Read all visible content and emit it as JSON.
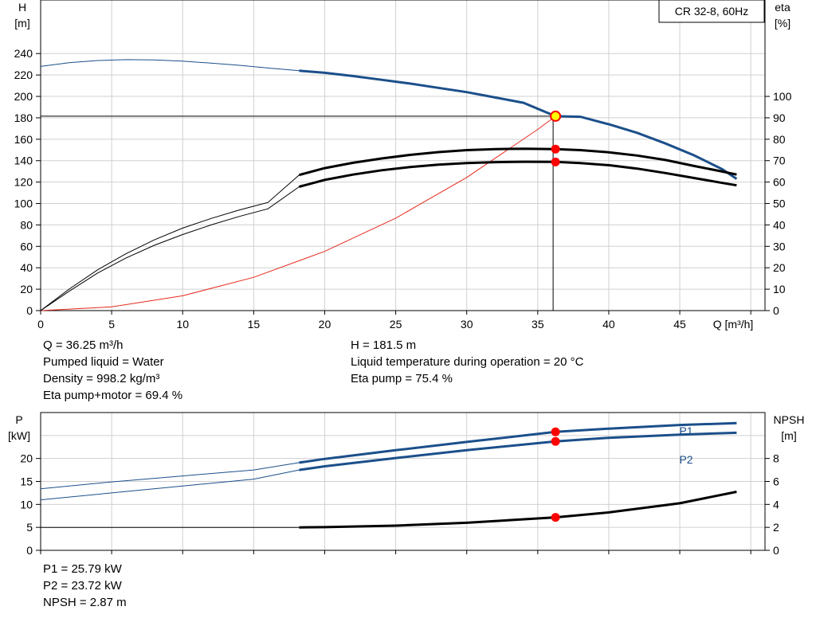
{
  "chart_data": [
    {
      "type": "line",
      "title": "CR 32-8, 60Hz",
      "xlabel": "Q [m³/h]",
      "ylabel_left": "H\n[m]",
      "ylabel_right": "eta\n[%]",
      "xlim": [
        0,
        51
      ],
      "ylim_left": [
        0,
        290
      ],
      "ylim_right": [
        0,
        145
      ],
      "xticks": [
        0,
        5,
        10,
        15,
        20,
        25,
        30,
        35,
        40,
        45
      ],
      "yticks_left": [
        0,
        20,
        40,
        60,
        80,
        100,
        120,
        140,
        160,
        180,
        200,
        220,
        240
      ],
      "yticks_right": [
        0,
        10,
        20,
        30,
        40,
        50,
        60,
        70,
        80,
        90,
        100
      ],
      "grid": true,
      "operating_range_x": [
        18.2,
        49
      ],
      "series": [
        {
          "key": "H",
          "axis": "left",
          "color": "#1b4f8a",
          "x": [
            0,
            2,
            4,
            6,
            8,
            10,
            12,
            14,
            16,
            18.2,
            20,
            22,
            24,
            26,
            28,
            30,
            32,
            34,
            36.25,
            38,
            40,
            42,
            44,
            46,
            48,
            49
          ],
          "y": [
            228,
            231.5,
            233.5,
            234.3,
            234,
            233,
            231,
            229,
            226.5,
            224,
            222,
            219,
            215.5,
            212,
            208,
            204,
            199,
            194,
            181.5,
            181,
            174,
            166,
            156,
            145,
            132,
            123
          ]
        },
        {
          "key": "eta_pump",
          "axis": "right",
          "color": "#000000",
          "x": [
            0,
            2,
            4,
            6,
            8,
            10,
            12,
            14,
            16,
            18.2,
            20,
            22,
            24,
            26,
            28,
            30,
            32,
            34,
            36.25,
            38,
            40,
            42,
            44,
            46,
            48,
            49
          ],
          "y": [
            0,
            10,
            19,
            26.5,
            33,
            38.5,
            43,
            47,
            50.5,
            63.3,
            66.5,
            69,
            71,
            72.7,
            74,
            74.9,
            75.4,
            75.6,
            75.4,
            74.9,
            73.9,
            72.4,
            70.3,
            67.5,
            64.9,
            63.5
          ]
        },
        {
          "key": "eta_pump_motor",
          "axis": "right",
          "color": "#000000",
          "x": [
            0,
            2,
            4,
            6,
            8,
            10,
            12,
            14,
            16,
            18.2,
            20,
            22,
            24,
            26,
            28,
            30,
            32,
            34,
            36.25,
            38,
            40,
            42,
            44,
            46,
            48,
            49
          ],
          "y": [
            0,
            9,
            17.5,
            24.5,
            30.5,
            35.5,
            40,
            44,
            47.5,
            57.8,
            61,
            63.5,
            65.5,
            67,
            68.1,
            68.9,
            69.3,
            69.5,
            69.4,
            68.9,
            67.9,
            66.3,
            64.2,
            61.9,
            59.6,
            58.5
          ]
        },
        {
          "key": "system_curve",
          "axis": "left",
          "color": "#e8291c",
          "x": [
            0,
            5,
            10,
            15,
            20,
            25,
            30,
            35,
            36.25
          ],
          "y": [
            0,
            3.5,
            13.8,
            31.1,
            55.3,
            86.3,
            124.3,
            169.2,
            181.5
          ]
        }
      ],
      "operating_point": {
        "x": 36.25,
        "H": 181.5,
        "eta_pump": 75.4,
        "eta_pump_motor": 69.4
      }
    },
    {
      "type": "line",
      "xlabel": "",
      "ylabel_left": "P\n[kW]",
      "ylabel_right": "NPSH\n[m]",
      "xlim": [
        0,
        51
      ],
      "ylim_left": [
        0,
        30
      ],
      "ylim_right": [
        0,
        12
      ],
      "yticks_left": [
        0,
        5,
        10,
        15,
        20
      ],
      "yticks_right": [
        0,
        2,
        4,
        6,
        8
      ],
      "grid": true,
      "operating_range_x": [
        18.2,
        49
      ],
      "series": [
        {
          "key": "P1",
          "name": "P1",
          "axis": "left",
          "color": "#1b4f8a",
          "x": [
            0,
            5,
            10,
            15,
            18.2,
            20,
            25,
            30,
            36.25,
            40,
            45,
            49
          ],
          "y": [
            13.4,
            14.9,
            16.2,
            17.5,
            19.1,
            19.9,
            21.8,
            23.6,
            25.79,
            26.5,
            27.3,
            27.7
          ]
        },
        {
          "key": "P2",
          "name": "P2",
          "axis": "left",
          "color": "#1b4f8a",
          "x": [
            0,
            5,
            10,
            15,
            18.2,
            20,
            25,
            30,
            36.25,
            40,
            45,
            49
          ],
          "y": [
            11.0,
            12.5,
            14.0,
            15.5,
            17.5,
            18.3,
            20.1,
            21.8,
            23.72,
            24.5,
            25.2,
            25.6
          ]
        },
        {
          "key": "NPSH",
          "axis": "right",
          "color": "#000000",
          "x": [
            0,
            5,
            10,
            15,
            18.2,
            20,
            25,
            30,
            36.25,
            40,
            45,
            49
          ],
          "y": [
            2.0,
            2.0,
            2.0,
            2.0,
            2.0,
            2.02,
            2.15,
            2.4,
            2.87,
            3.3,
            4.1,
            5.1
          ]
        }
      ],
      "operating_point": {
        "x": 36.25,
        "P1": 25.79,
        "P2": 23.72,
        "NPSH": 2.87
      }
    }
  ],
  "info_top": {
    "col1": [
      "Q = 36.25 m³/h",
      "Pumped liquid = Water",
      "Density = 998.2 kg/m³",
      "Eta pump+motor = 69.4 %"
    ],
    "col2": [
      "H = 181.5 m",
      "Liquid temperature during operation = 20 °C",
      "Eta pump = 75.4 %"
    ]
  },
  "info_bottom": [
    "P1 = 25.79 kW",
    "P2 = 23.72 kW",
    "NPSH = 2.87 m"
  ],
  "colors": {
    "curve_blue": "#1b4f8a",
    "curve_black": "#000000",
    "system_red": "#e8291c",
    "marker_red": "#ff0000",
    "op_marker_fill": "#ffff00",
    "grid": "#d0d0d0"
  }
}
